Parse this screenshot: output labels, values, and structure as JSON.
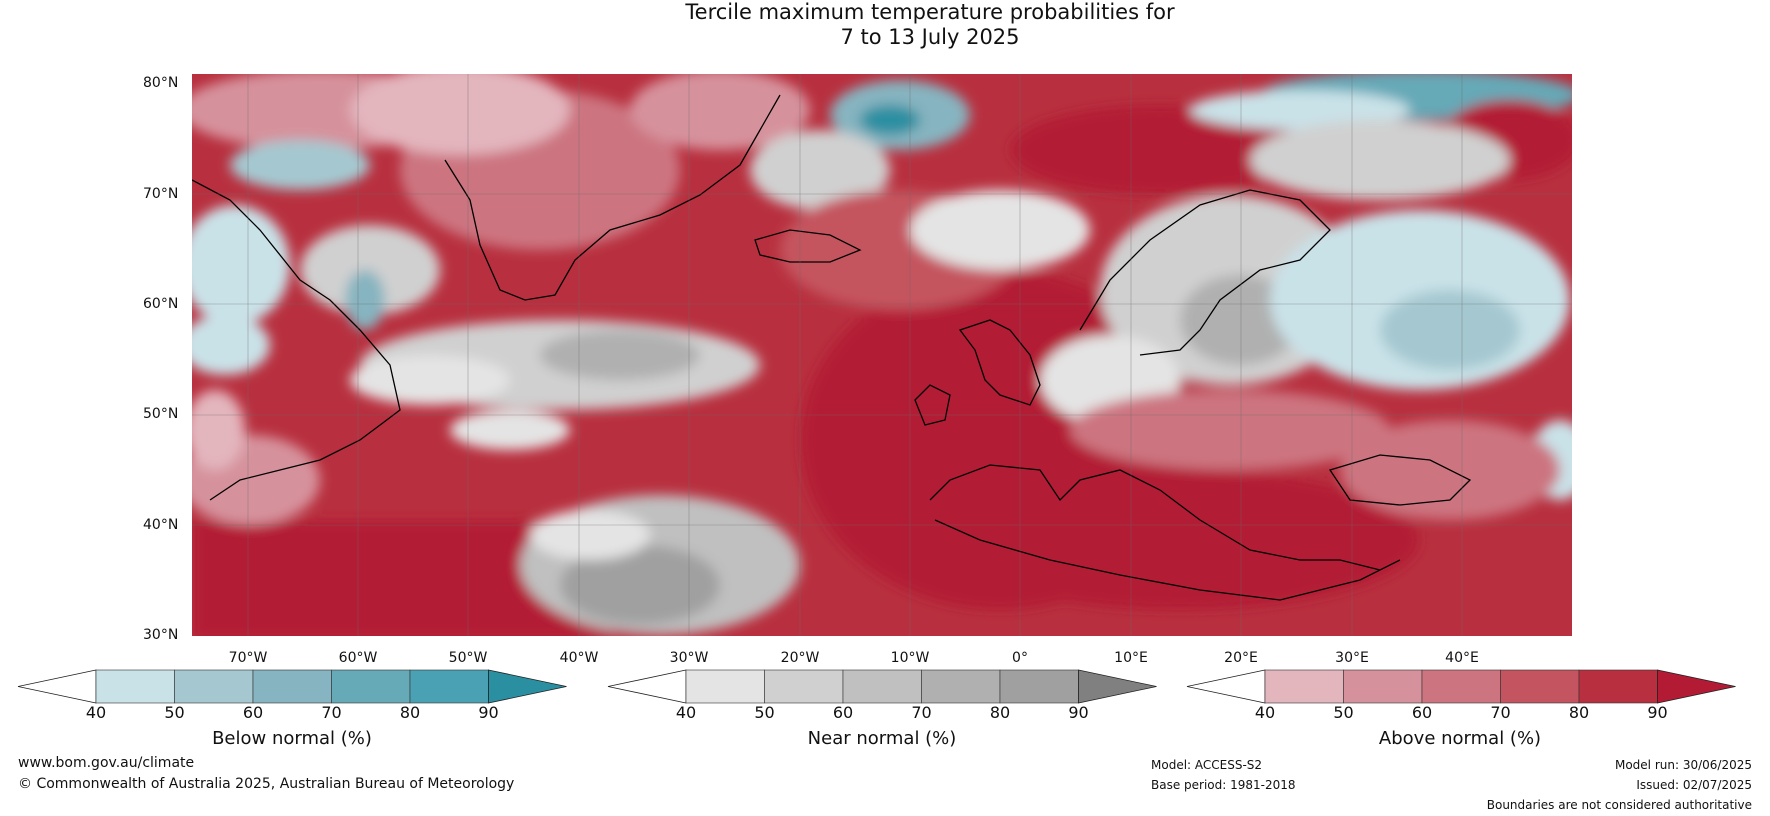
{
  "title_line1": "Tercile maximum temperature probabilities for",
  "title_line2": "7 to 13 July 2025",
  "lat_labels": [
    "80°N",
    "70°N",
    "60°N",
    "50°N",
    "40°N",
    "30°N"
  ],
  "lon_labels": [
    "70°W",
    "60°W",
    "50°W",
    "40°W",
    "30°W",
    "20°W",
    "10°W",
    "0°",
    "10°E",
    "20°E",
    "30°E",
    "40°E"
  ],
  "colorbars": [
    {
      "title": "Below normal (%)",
      "ticks": [
        "40",
        "50",
        "60",
        "70",
        "80",
        "90"
      ],
      "colors": [
        "#ffffff",
        "#c9e2e8",
        "#a5c8d0",
        "#86b4c0",
        "#66a9b7",
        "#4aa1b3",
        "#2a8fa1"
      ]
    },
    {
      "title": "Near normal (%)",
      "ticks": [
        "40",
        "50",
        "60",
        "70",
        "80",
        "90"
      ],
      "colors": [
        "#ffffff",
        "#e4e4e4",
        "#d0d0d0",
        "#c0c0c0",
        "#b0b0b0",
        "#a0a0a0",
        "#808080"
      ]
    },
    {
      "title": "Above normal (%)",
      "ticks": [
        "40",
        "50",
        "60",
        "70",
        "80",
        "90"
      ],
      "colors": [
        "#ffffff",
        "#e3b5bd",
        "#d6929c",
        "#cc7580",
        "#c4545f",
        "#b8303f",
        "#b31b35"
      ]
    }
  ],
  "footer": {
    "website": "www.bom.gov.au/climate",
    "copyright": "© Commonwealth of Australia 2025, Australian Bureau of Meteorology",
    "model": "Model: ACCESS-S2",
    "base_period": "Base period: 1981-2018",
    "model_run": "Model run: 30/06/2025",
    "issued": "Issued: 02/07/2025",
    "disclaimer": "Boundaries are not considered authoritative"
  }
}
